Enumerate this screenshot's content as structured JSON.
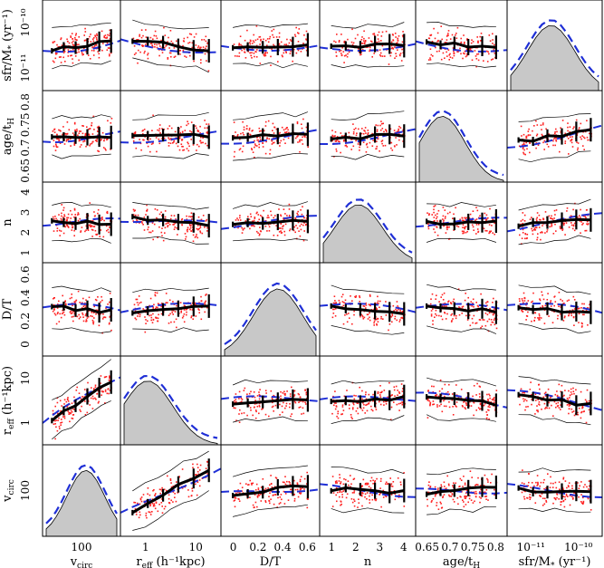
{
  "chart_data": {
    "type": "scatter",
    "title": "",
    "layout": "6x6 corner-plot matrix of galaxy properties",
    "variables": [
      {
        "key": "vcirc",
        "label": "v",
        "sub": "circ",
        "suffix": "",
        "scale": "log",
        "ticks": [
          "100"
        ]
      },
      {
        "key": "reff",
        "label": "r",
        "sub": "eff",
        "suffix": " (h⁻¹kpc)",
        "scale": "log",
        "ticks": [
          "1",
          "10"
        ]
      },
      {
        "key": "dt",
        "label": "D/T",
        "sub": "",
        "suffix": "",
        "scale": "linear",
        "ticks": [
          "0",
          "0.2",
          "0.4",
          "0.6"
        ]
      },
      {
        "key": "n",
        "label": "n",
        "sub": "",
        "suffix": "",
        "scale": "linear",
        "ticks": [
          "1",
          "2",
          "3",
          "4"
        ]
      },
      {
        "key": "age",
        "label": "age/t",
        "sub": "H",
        "suffix": "",
        "scale": "linear",
        "ticks": [
          "0.65",
          "0.7",
          "0.75",
          "0.8"
        ]
      },
      {
        "key": "sfr",
        "label": "sfr/M",
        "sub": "*",
        "suffix": " (yr⁻¹)",
        "scale": "log",
        "ticks": [
          "10⁻¹¹",
          "10⁻¹⁰"
        ]
      }
    ],
    "row_ylabels": [
      {
        "label": "sfr/M",
        "sub": "*",
        "suffix": " (yr⁻¹)"
      },
      {
        "label": "age/t",
        "sub": "H",
        "suffix": ""
      },
      {
        "label": "n",
        "sub": "",
        "suffix": ""
      },
      {
        "label": "D/T",
        "sub": "",
        "suffix": ""
      },
      {
        "label": "r",
        "sub": "eff",
        "suffix": " (h⁻¹kpc)"
      },
      {
        "label": "v",
        "sub": "circ",
        "suffix": ""
      }
    ],
    "row_yticks": [
      [
        "10⁻¹⁰",
        "10⁻¹¹"
      ],
      [
        "0.8",
        "0.75",
        "0.7",
        "0.65"
      ],
      [
        "4",
        "3",
        "2",
        "1"
      ],
      [
        "0.6",
        "0.4",
        "0.2",
        "0"
      ],
      [
        "10",
        "1"
      ],
      [
        "100"
      ]
    ],
    "diagonal": {
      "description": "grey filled histograms with blue dashed model curves",
      "cells": [
        [
          5,
          0
        ],
        [
          4,
          1
        ],
        [
          3,
          2
        ],
        [
          2,
          3
        ],
        [
          1,
          4
        ],
        [
          0,
          5
        ]
      ]
    },
    "off_diagonal": {
      "points": "red scatter",
      "median": "thick black line with error bars",
      "percentiles": "thin black lines",
      "model": "blue dashed line"
    },
    "colors": {
      "points": "#ff2020",
      "hist_fill": "#c8c8c8",
      "model": "#1f2fd6",
      "median": "#000000"
    }
  }
}
